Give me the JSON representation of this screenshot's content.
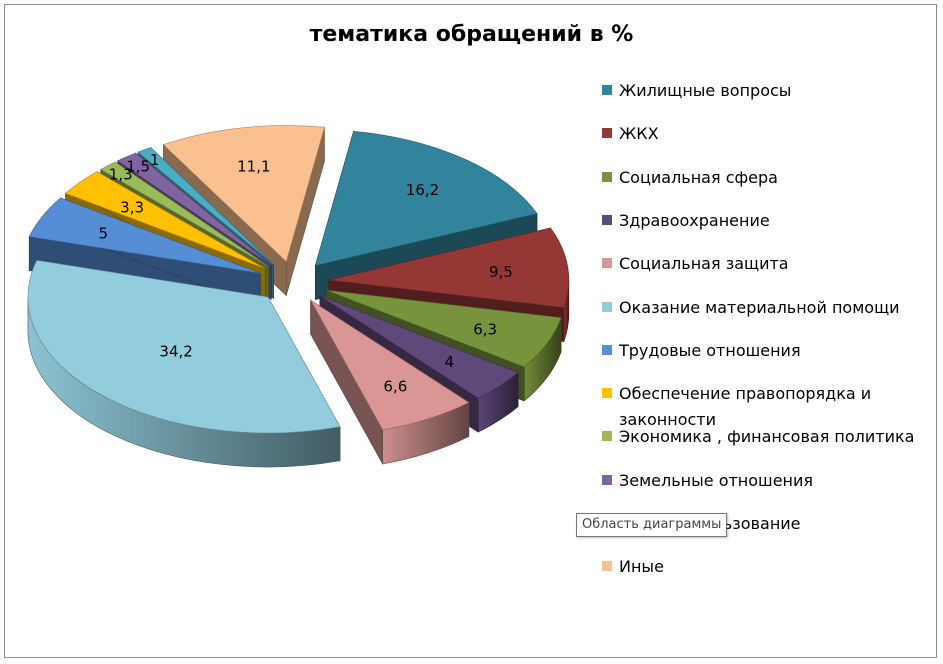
{
  "chart_data": {
    "type": "pie",
    "title": "тематика обращений в %",
    "categories": [
      "Жилищные вопросы",
      "ЖКХ",
      "Социальная сфера",
      "Здравоохранение",
      "Социальная защита",
      "Оказание материальной помощи",
      "Трудовые отношения",
      "Обеспечение правопорядка и законности",
      "Экономика , финансовая политика",
      "Земельные отношения",
      "Природопользование",
      "Иные"
    ],
    "values": [
      16.2,
      9.5,
      6.3,
      4,
      6.6,
      34.2,
      5,
      3.3,
      1.3,
      1.5,
      1,
      11.1
    ],
    "data_labels": [
      "16,2",
      "9,5",
      "6,3",
      "4",
      "6,6",
      "34,2",
      "5",
      "3,3",
      "1,3",
      "1,5",
      "1",
      "11,1"
    ],
    "colors": [
      "#31849b",
      "#953735",
      "#77933c",
      "#5f497a",
      "#d99694",
      "#93cddd",
      "#558ed5",
      "#ffc000",
      "#9bbb59",
      "#8064a2",
      "#4bacc6",
      "#fac090"
    ],
    "legend_placement": "right",
    "exploded": true,
    "style": "3d"
  },
  "tooltip": {
    "text": "Область диаграммы"
  }
}
